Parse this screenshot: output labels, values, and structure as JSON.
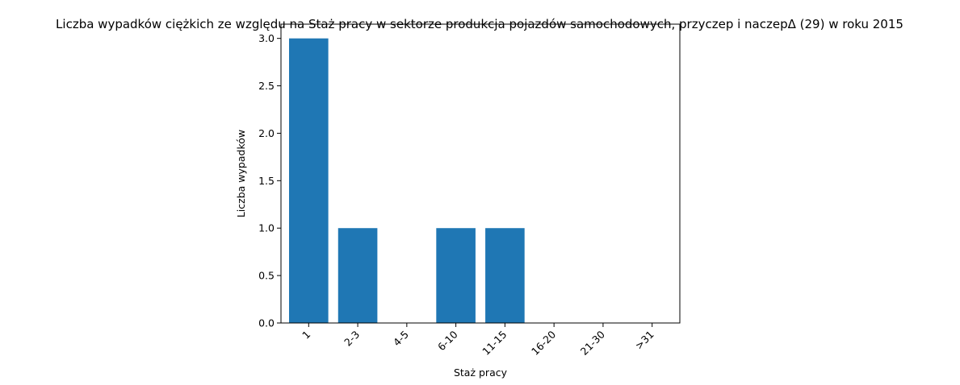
{
  "chart_data": {
    "type": "bar",
    "title": "Liczba wypadków ciężkich ze względu na Staż pracy w sektorze produkcja pojazdów samochodowych, przyczep i naczepΔ (29) w roku 2015",
    "xlabel": "Staż pracy",
    "ylabel": "Liczba wypadków",
    "categories": [
      "1",
      "2-3",
      "4-5",
      "6-10",
      "11-15",
      "16-20",
      "21-30",
      ">31"
    ],
    "values": [
      3,
      1,
      0,
      1,
      1,
      0,
      0,
      0
    ],
    "ylim": [
      0,
      3.15
    ],
    "yticks": [
      "0.0",
      "0.5",
      "1.0",
      "1.5",
      "2.0",
      "2.5",
      "3.0"
    ],
    "bar_color": "#1f77b4",
    "grid": false,
    "legend": "none"
  }
}
